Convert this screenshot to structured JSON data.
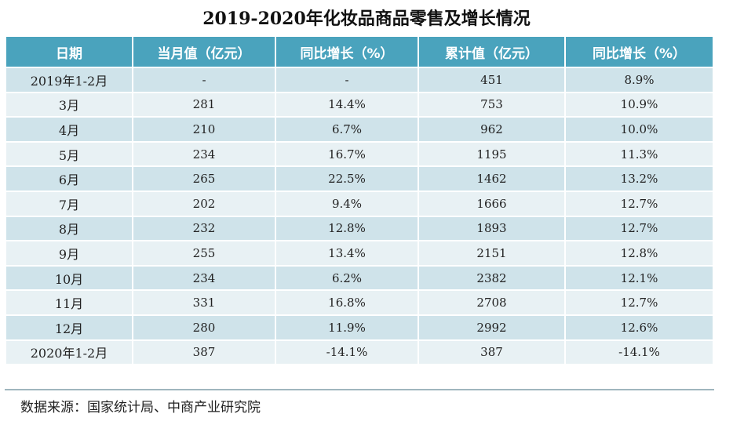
{
  "chart_data": {
    "type": "table",
    "title": "2019-2020年化妆品商品零售及增长情况",
    "columns": [
      "日期",
      "当月值（亿元）",
      "同比增长（%）",
      "累计值（亿元）",
      "同比增长（%）"
    ],
    "rows": [
      [
        "2019年1-2月",
        "-",
        "-",
        "451",
        "8.9%"
      ],
      [
        "3月",
        "281",
        "14.4%",
        "753",
        "10.9%"
      ],
      [
        "4月",
        "210",
        "6.7%",
        "962",
        "10.0%"
      ],
      [
        "5月",
        "234",
        "16.7%",
        "1195",
        "11.3%"
      ],
      [
        "6月",
        "265",
        "22.5%",
        "1462",
        "13.2%"
      ],
      [
        "7月",
        "202",
        "9.4%",
        "1666",
        "12.7%"
      ],
      [
        "8月",
        "232",
        "12.8%",
        "1893",
        "12.7%"
      ],
      [
        "9月",
        "255",
        "13.4%",
        "2151",
        "12.8%"
      ],
      [
        "10月",
        "234",
        "6.2%",
        "2382",
        "12.1%"
      ],
      [
        "11月",
        "331",
        "16.8%",
        "2708",
        "12.7%"
      ],
      [
        "12月",
        "280",
        "11.9%",
        "2992",
        "12.6%"
      ],
      [
        "2020年1-2月",
        "387",
        "-14.1%",
        "387",
        "-14.1%"
      ]
    ],
    "source": "数据来源：国家统计局、中商产业研究院"
  },
  "colors": {
    "header": "#4aa3bd",
    "row_dark": "#cfe3ea",
    "row_light": "#e8f1f4"
  }
}
